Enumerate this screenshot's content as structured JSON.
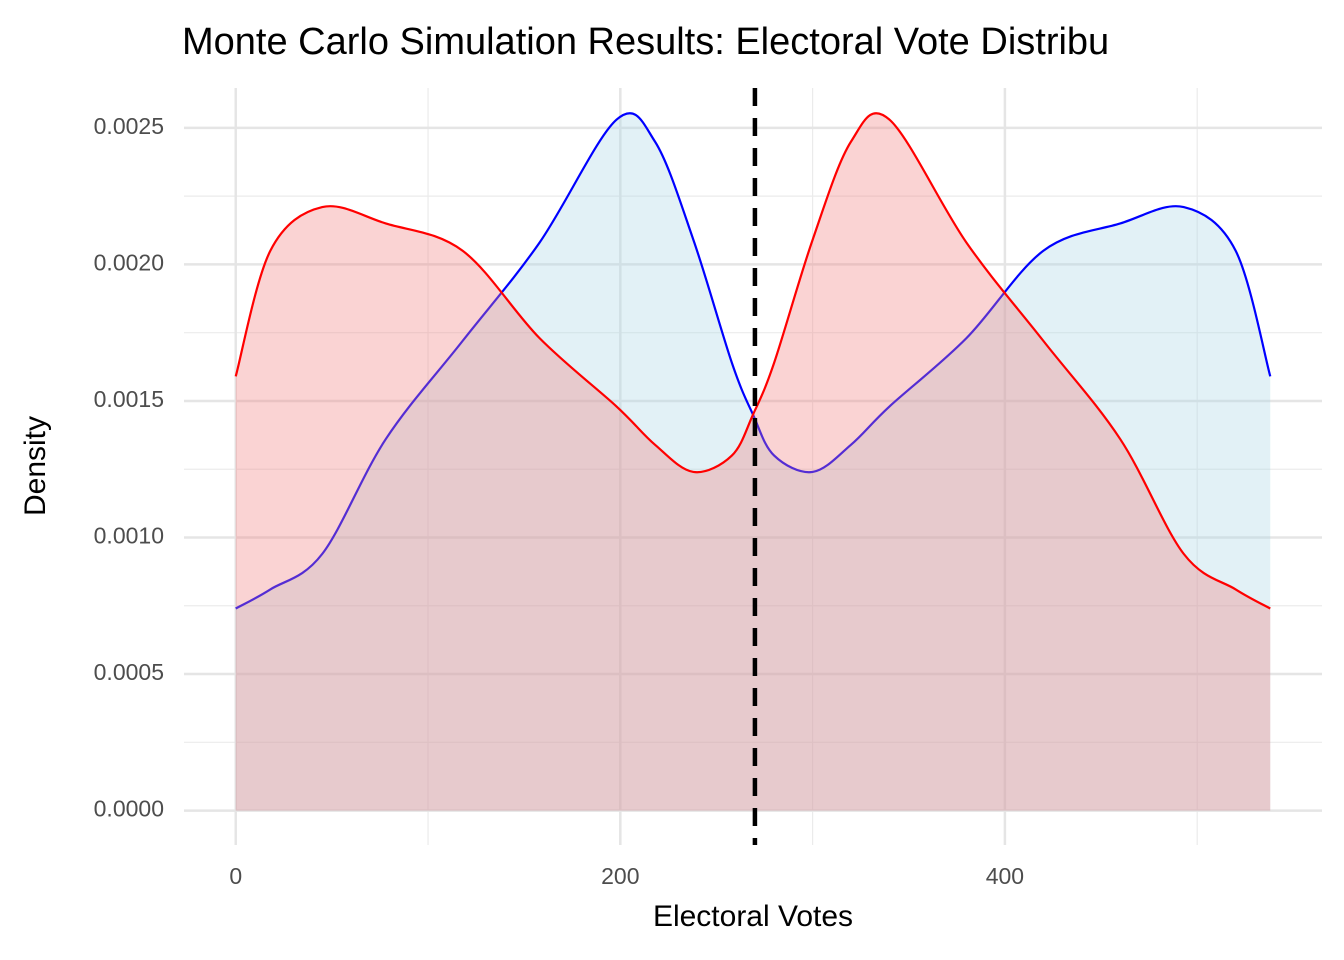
{
  "chart_data": {
    "type": "density",
    "title": "Monte Carlo Simulation Results: Electoral Vote Distribu",
    "x_label": "Electoral Votes",
    "y_label": "Density",
    "x": [
      0,
      18,
      45,
      78,
      118,
      158,
      198,
      218,
      238,
      258,
      269,
      280,
      300,
      320,
      340,
      380,
      420,
      460,
      493,
      520,
      538
    ],
    "series": [
      {
        "color": "#0000ff",
        "fill": "#add8e6",
        "values": [
          0.00074,
          0.00081,
          0.00094,
          0.00136,
          0.00172,
          0.00208,
          0.00253,
          0.00245,
          0.00209,
          0.00164,
          0.00145,
          0.0013,
          0.00124,
          0.00134,
          0.00148,
          0.00173,
          0.00205,
          0.00215,
          0.00221,
          0.00205,
          0.00159
        ]
      },
      {
        "color": "#ff0000",
        "fill": "#f08080",
        "values": [
          0.00159,
          0.00205,
          0.00221,
          0.00215,
          0.00205,
          0.00173,
          0.00148,
          0.00134,
          0.00124,
          0.0013,
          0.00145,
          0.00164,
          0.00209,
          0.00245,
          0.00253,
          0.00208,
          0.00172,
          0.00136,
          0.00094,
          0.00081,
          0.00074
        ]
      }
    ],
    "vline": 270,
    "xlim": [
      -26.9,
      564.9
    ],
    "ylim": [
      -0.000126,
      0.002646
    ],
    "xticks": [
      0,
      200,
      400
    ],
    "xminor": [
      100,
      300,
      500
    ],
    "yticks": [
      {
        "value": 0,
        "label": "0.0000"
      },
      0.0005,
      {
        "value": 0.001,
        "label": "0.0010"
      },
      0.0015,
      {
        "value": 0.002,
        "label": "0.0020"
      },
      0.0025
    ],
    "yminor": [
      0.00025,
      0.00075,
      0.00125,
      0.00175,
      0.00225
    ],
    "grid": true
  }
}
